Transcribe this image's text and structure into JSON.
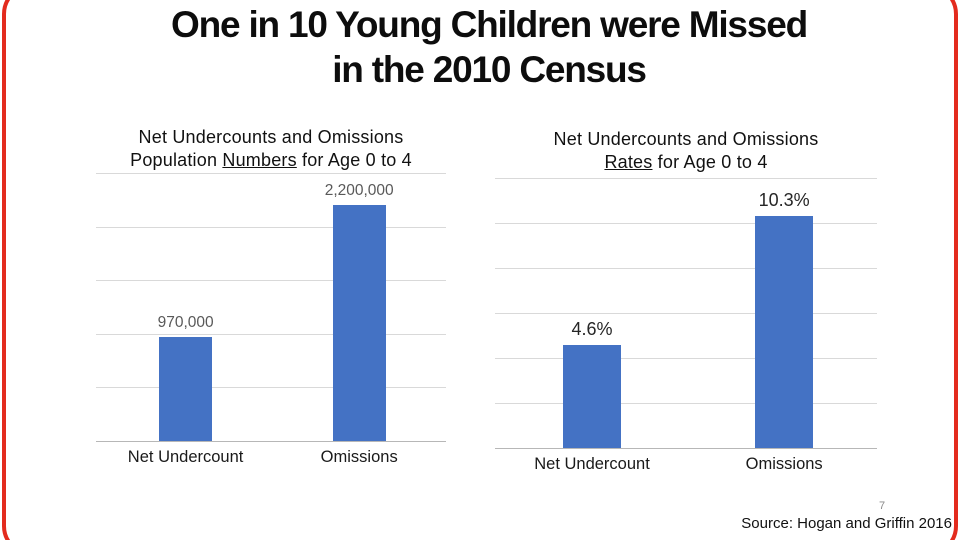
{
  "slide": {
    "title_line1": "One in 10 Young Children were Missed",
    "title_line2": "in the 2010 Census",
    "accent_border_color": "#e32b1e",
    "footer": {
      "source": "Source: Hogan and Griffin 2016",
      "page_number": "7"
    }
  },
  "chart_data": [
    {
      "type": "bar",
      "title_line1": "Net Undercounts and Omissions",
      "title_line2": {
        "prefix": "Population ",
        "underlined": "Numbers",
        "suffix": " for Age 0 to 4"
      },
      "categories": [
        "Net Undercount",
        "Omissions"
      ],
      "values": [
        970000,
        2200000
      ],
      "data_labels": [
        "970,000",
        "2,200,000"
      ],
      "xlabel": "",
      "ylabel": "",
      "ylim": [
        0,
        2500000
      ],
      "gridline_step": 500000,
      "grid": true,
      "legend": "none",
      "bar_color": "#4472c4",
      "data_label_color": "#595959"
    },
    {
      "type": "bar",
      "title_line1": "Net Undercounts and Omissions",
      "title_line2": {
        "prefix": "",
        "underlined": "Rates",
        "suffix": " for Age 0 to 4"
      },
      "categories": [
        "Net Undercount",
        "Omissions"
      ],
      "values": [
        4.6,
        10.3
      ],
      "data_labels": [
        "4.6%",
        "10.3%"
      ],
      "xlabel": "",
      "ylabel": "",
      "ylim": [
        0,
        12
      ],
      "gridline_step": 2,
      "grid": true,
      "legend": "none",
      "bar_color": "#4472c4",
      "data_label_color": "#262626"
    }
  ]
}
